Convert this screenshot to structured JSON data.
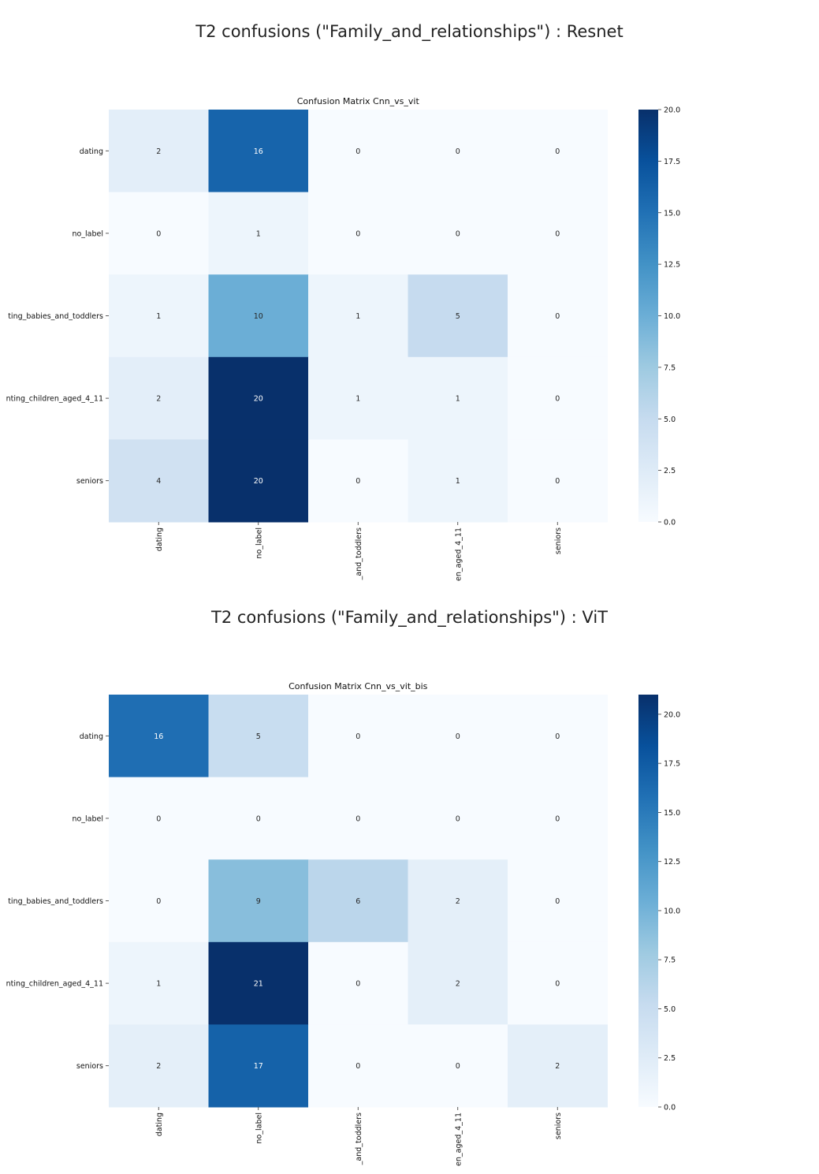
{
  "sections": [
    {
      "heading": "T2 confusions (\"Family_and_relationships\") : Resnet"
    },
    {
      "heading": "T2 confusions (\"Family_and_relationships\") : ViT"
    }
  ],
  "chart_data": [
    {
      "type": "heatmap",
      "title": "Confusion Matrix Cnn_vs_vit",
      "row_labels": [
        "dating",
        "no_label",
        "ting_babies_and_toddlers",
        "nting_children_aged_4_11",
        "seniors"
      ],
      "col_labels": [
        "dating",
        "no_label",
        "_and_toddlers",
        "en_aged_4_11",
        "seniors"
      ],
      "values": [
        [
          2,
          16,
          0,
          0,
          0
        ],
        [
          0,
          1,
          0,
          0,
          0
        ],
        [
          1,
          10,
          1,
          5,
          0
        ],
        [
          2,
          20,
          1,
          1,
          0
        ],
        [
          4,
          20,
          0,
          1,
          0
        ]
      ],
      "vmin": 0,
      "vmax": 20,
      "colorbar_ticks": [
        "0.0",
        "2.5",
        "5.0",
        "7.5",
        "10.0",
        "12.5",
        "15.0",
        "17.5",
        "20.0"
      ],
      "colormap": "Blues",
      "colors": {
        "low": "#f7fbff",
        "high": "#08306b"
      }
    },
    {
      "type": "heatmap",
      "title": "Confusion Matrix Cnn_vs_vit_bis",
      "row_labels": [
        "dating",
        "no_label",
        "ting_babies_and_toddlers",
        "nting_children_aged_4_11",
        "seniors"
      ],
      "col_labels": [
        "dating",
        "no_label",
        "_and_toddlers",
        "en_aged_4_11",
        "seniors"
      ],
      "values": [
        [
          16,
          5,
          0,
          0,
          0
        ],
        [
          0,
          0,
          0,
          0,
          0
        ],
        [
          0,
          9,
          6,
          2,
          0
        ],
        [
          1,
          21,
          0,
          2,
          0
        ],
        [
          2,
          17,
          0,
          0,
          2
        ]
      ],
      "vmin": 0,
      "vmax": 21,
      "colorbar_ticks": [
        "0.0",
        "2.5",
        "5.0",
        "7.5",
        "10.0",
        "12.5",
        "15.0",
        "17.5",
        "20.0"
      ],
      "colormap": "Blues",
      "colors": {
        "low": "#f7fbff",
        "high": "#08306b"
      }
    }
  ]
}
